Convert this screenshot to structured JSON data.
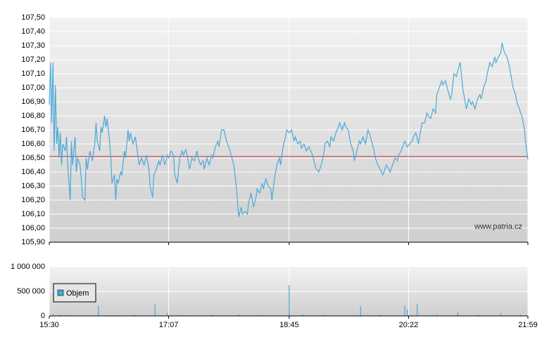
{
  "chart_data": [
    {
      "type": "line",
      "annotation": "www.patria.cz",
      "xlim": [
        930,
        1319
      ],
      "ylim": [
        105.9,
        107.5
      ],
      "yticks": [
        {
          "value": 105.9,
          "label": "105,90"
        },
        {
          "value": 106.0,
          "label": "106,00"
        },
        {
          "value": 106.1,
          "label": "106,10"
        },
        {
          "value": 106.2,
          "label": "106,20"
        },
        {
          "value": 106.3,
          "label": "106,30"
        },
        {
          "value": 106.4,
          "label": "106,40"
        },
        {
          "value": 106.5,
          "label": "106,50"
        },
        {
          "value": 106.6,
          "label": "106,60"
        },
        {
          "value": 106.7,
          "label": "106,70"
        },
        {
          "value": 106.8,
          "label": "106,80"
        },
        {
          "value": 106.9,
          "label": "106,90"
        },
        {
          "value": 107.0,
          "label": "107,00"
        },
        {
          "value": 107.1,
          "label": "107,10"
        },
        {
          "value": 107.2,
          "label": "107,20"
        },
        {
          "value": 107.3,
          "label": "107,30"
        },
        {
          "value": 107.4,
          "label": "107,40"
        },
        {
          "value": 107.5,
          "label": "107,50"
        }
      ],
      "grid": true,
      "reference_line": 106.51,
      "reference_color": "#c0202a",
      "color": "#4aa8d8",
      "x": [
        930,
        931,
        932,
        933,
        934,
        935,
        936,
        937,
        938,
        939,
        940,
        941,
        943,
        944,
        945,
        947,
        948,
        949,
        951,
        952,
        953,
        955,
        956,
        957,
        959,
        960,
        961,
        963,
        965,
        967,
        968,
        969,
        971,
        972,
        973,
        975,
        976,
        977,
        979,
        980,
        981,
        983,
        984,
        985,
        986,
        988,
        989,
        991,
        992,
        994,
        995,
        996,
        998,
        1000,
        1002,
        1003,
        1005,
        1007,
        1009,
        1011,
        1012,
        1014,
        1015,
        1017,
        1019,
        1020,
        1022,
        1024,
        1026,
        1027,
        1029,
        1031,
        1032,
        1034,
        1036,
        1038,
        1039,
        1041,
        1043,
        1044,
        1046,
        1048,
        1050,
        1051,
        1053,
        1055,
        1056,
        1058,
        1060,
        1062,
        1063,
        1065,
        1067,
        1068,
        1070,
        1072,
        1074,
        1075,
        1077,
        1079,
        1080,
        1082,
        1084,
        1086,
        1087,
        1089,
        1091,
        1092,
        1094,
        1096,
        1098,
        1099,
        1101,
        1103,
        1104,
        1106,
        1108,
        1110,
        1111,
        1113,
        1115,
        1117,
        1118,
        1120,
        1122,
        1123,
        1125,
        1127,
        1129,
        1130,
        1132,
        1134,
        1135,
        1137,
        1139,
        1141,
        1142,
        1144,
        1146,
        1147,
        1149,
        1151,
        1153,
        1154,
        1156,
        1158,
        1159,
        1161,
        1163,
        1165,
        1166,
        1168,
        1170,
        1171,
        1173,
        1175,
        1177,
        1178,
        1180,
        1182,
        1183,
        1185,
        1187,
        1189,
        1190,
        1192,
        1194,
        1195,
        1197,
        1199,
        1201,
        1202,
        1204,
        1206,
        1207,
        1209,
        1211,
        1213,
        1214,
        1216,
        1218,
        1219,
        1221,
        1223,
        1225,
        1226,
        1228,
        1230,
        1232,
        1233,
        1235,
        1237,
        1238,
        1240,
        1242,
        1244,
        1245,
        1247,
        1249,
        1250,
        1252,
        1254,
        1256,
        1257,
        1259,
        1261,
        1262,
        1264,
        1266,
        1268,
        1269,
        1271,
        1273,
        1274,
        1276,
        1278,
        1280,
        1281,
        1283,
        1285,
        1286,
        1288,
        1290,
        1292,
        1293,
        1295,
        1297,
        1298,
        1300,
        1302,
        1304,
        1305,
        1307,
        1309,
        1310,
        1312,
        1314,
        1316,
        1317,
        1319
      ],
      "values": [
        106.88,
        107.18,
        106.75,
        107.18,
        106.55,
        107.02,
        106.6,
        106.72,
        106.5,
        106.68,
        106.45,
        106.6,
        106.55,
        106.65,
        106.45,
        106.2,
        106.62,
        106.45,
        106.65,
        106.4,
        106.5,
        106.45,
        106.35,
        106.22,
        106.2,
        106.5,
        106.42,
        106.55,
        106.48,
        106.6,
        106.75,
        106.62,
        106.55,
        106.72,
        106.68,
        106.8,
        106.72,
        106.78,
        106.62,
        106.5,
        106.32,
        106.38,
        106.2,
        106.35,
        106.32,
        106.4,
        106.38,
        106.55,
        106.5,
        106.7,
        106.62,
        106.68,
        106.6,
        106.65,
        106.52,
        106.45,
        106.5,
        106.45,
        106.52,
        106.42,
        106.3,
        106.22,
        106.38,
        106.42,
        106.48,
        106.45,
        106.52,
        106.45,
        106.52,
        106.5,
        106.55,
        106.52,
        106.38,
        106.32,
        106.5,
        106.55,
        106.52,
        106.56,
        106.48,
        106.42,
        106.5,
        106.48,
        106.55,
        106.5,
        106.45,
        106.48,
        106.42,
        106.5,
        106.45,
        106.52,
        106.5,
        106.58,
        106.62,
        106.58,
        106.7,
        106.7,
        106.62,
        106.6,
        106.55,
        106.48,
        106.45,
        106.3,
        106.08,
        106.15,
        106.1,
        106.12,
        106.1,
        106.18,
        106.25,
        106.15,
        106.22,
        106.28,
        106.25,
        106.32,
        106.28,
        106.35,
        106.3,
        106.28,
        106.2,
        106.35,
        106.45,
        106.5,
        106.45,
        106.58,
        106.65,
        106.7,
        106.68,
        106.7,
        106.62,
        106.65,
        106.6,
        106.62,
        106.57,
        106.6,
        106.55,
        106.58,
        106.56,
        106.52,
        106.45,
        106.42,
        106.4,
        106.45,
        106.52,
        106.6,
        106.62,
        106.58,
        106.65,
        106.62,
        106.68,
        106.72,
        106.75,
        106.7,
        106.75,
        106.72,
        106.7,
        106.6,
        106.55,
        106.48,
        106.55,
        106.62,
        106.6,
        106.65,
        106.6,
        106.7,
        106.68,
        106.62,
        106.55,
        106.5,
        106.45,
        106.42,
        106.38,
        106.4,
        106.45,
        106.42,
        106.4,
        106.45,
        106.5,
        106.48,
        106.52,
        106.55,
        106.6,
        106.62,
        106.58,
        106.6,
        106.62,
        106.65,
        106.68,
        106.6,
        106.7,
        106.75,
        106.75,
        106.82,
        106.8,
        106.78,
        106.85,
        106.82,
        106.95,
        107.0,
        107.05,
        107.02,
        107.05,
        106.98,
        106.92,
        106.95,
        107.1,
        107.08,
        107.12,
        107.18,
        107.0,
        106.9,
        106.85,
        106.92,
        106.88,
        106.9,
        106.85,
        106.92,
        106.95,
        106.92,
        107.0,
        107.05,
        107.1,
        107.18,
        107.15,
        107.22,
        107.18,
        107.22,
        107.25,
        107.32,
        107.25,
        107.22,
        107.15,
        107.1,
        107.0,
        106.95,
        106.9,
        106.85,
        106.8,
        106.72,
        106.62,
        106.49
      ]
    },
    {
      "type": "bar",
      "xlim": [
        930,
        1319
      ],
      "xticks": [
        {
          "value": 930,
          "label": "15:30"
        },
        {
          "value": 1027,
          "label": "17:07"
        },
        {
          "value": 1125,
          "label": "18:45"
        },
        {
          "value": 1222,
          "label": "20:22"
        },
        {
          "value": 1319,
          "label": "21:59"
        }
      ],
      "ylim": [
        0,
        1000000
      ],
      "yticks": [
        0,
        {
          "value": 500000,
          "label": "500 000"
        },
        {
          "value": 1000000,
          "label": "1 000 000"
        }
      ],
      "grid": true,
      "legend": "top-left",
      "series": [
        {
          "name": "Objem",
          "color": "#4aa8d8",
          "x": [
            933,
            939,
            947,
            970,
            981,
            999,
            1016,
            1026,
            1039,
            1062,
            1084,
            1102,
            1125,
            1136,
            1153,
            1183,
            1199,
            1219,
            1221,
            1229,
            1245,
            1262,
            1279,
            1297,
            1313
          ],
          "values": [
            40000,
            30000,
            20000,
            210000,
            20000,
            25000,
            230000,
            60000,
            20000,
            25000,
            30000,
            20000,
            630000,
            30000,
            20000,
            200000,
            25000,
            210000,
            130000,
            250000,
            30000,
            70000,
            25000,
            50000,
            30000
          ]
        }
      ]
    }
  ]
}
